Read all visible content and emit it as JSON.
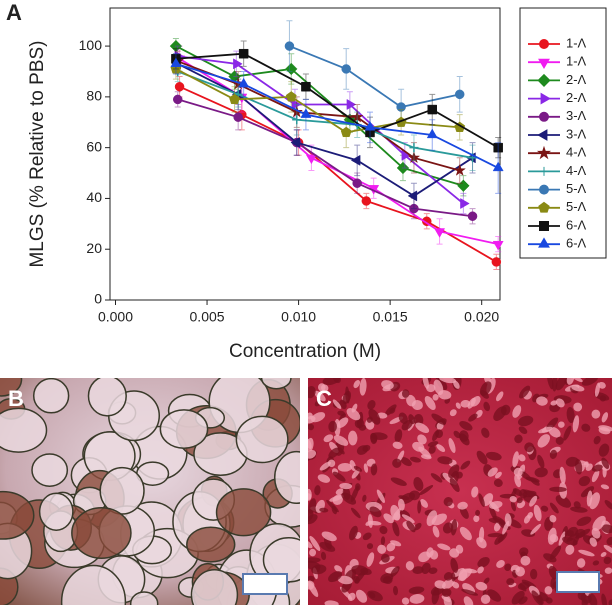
{
  "chart_data": {
    "type": "line",
    "panel_label": "A",
    "y_label": "MLGS (% Relative to PBS)",
    "x_label": "Concentration (M)",
    "xlim": [
      -0.0003,
      0.021
    ],
    "ylim": [
      0,
      115
    ],
    "xticks": [
      {
        "value": 0,
        "label": "0.000"
      },
      {
        "value": 0.005,
        "label": "0.005"
      },
      {
        "value": 0.01,
        "label": "0.010"
      },
      {
        "value": 0.015,
        "label": "0.015"
      },
      {
        "value": 0.02,
        "label": "0.020"
      }
    ],
    "yticks": [
      0,
      20,
      40,
      60,
      80,
      100
    ],
    "legend": "right",
    "series": [
      {
        "name": "1-Λ",
        "color": "#e8141e",
        "marker": "circle",
        "x": [
          0.0035,
          0.0069,
          0.01,
          0.0137,
          0.017,
          0.0208
        ],
        "values": [
          84,
          73,
          62,
          39,
          31,
          15
        ],
        "errors": [
          4,
          6,
          5,
          3,
          3,
          3
        ]
      },
      {
        "name": "1-Λ",
        "color": "#f01cf0",
        "marker": "triangle-down",
        "x": [
          0.0035,
          0.0069,
          0.0107,
          0.0141,
          0.0177,
          0.0209
        ],
        "values": [
          95,
          80,
          56,
          44,
          27,
          22
        ],
        "errors": [
          5,
          6,
          5,
          4,
          5,
          3
        ]
      },
      {
        "name": "2-Λ",
        "color": "#1e8a1e",
        "marker": "diamond",
        "x": [
          0.0033,
          0.0065,
          0.0096,
          0.0128,
          0.0157,
          0.019
        ],
        "values": [
          100,
          88,
          91,
          71,
          52,
          45
        ],
        "errors": [
          3,
          5,
          6,
          5,
          5,
          4
        ]
      },
      {
        "name": "2-Λ",
        "color": "#8a28e6",
        "marker": "triangle-right",
        "x": [
          0.0034,
          0.0066,
          0.0098,
          0.0128,
          0.0158,
          0.019
        ],
        "values": [
          96,
          93,
          77,
          77,
          57,
          38
        ],
        "errors": [
          4,
          5,
          6,
          5,
          5,
          4
        ]
      },
      {
        "name": "3-Λ",
        "color": "#7a1a86",
        "marker": "circle",
        "x": [
          0.0034,
          0.0067,
          0.0099,
          0.0132,
          0.0163,
          0.0195
        ],
        "values": [
          79,
          72,
          62,
          46,
          36,
          33
        ],
        "errors": [
          3,
          5,
          5,
          4,
          4,
          3
        ]
      },
      {
        "name": "3-Λ",
        "color": "#1c1c78",
        "marker": "triangle-left",
        "x": [
          0.0034,
          0.0067,
          0.0099,
          0.0132,
          0.0163,
          0.0195
        ],
        "values": [
          93,
          81,
          62,
          55,
          41,
          56
        ],
        "errors": [
          4,
          6,
          5,
          6,
          5,
          6
        ]
      },
      {
        "name": "4-Λ",
        "color": "#7a1414",
        "marker": "star",
        "x": [
          0.0034,
          0.0067,
          0.0099,
          0.0132,
          0.0163,
          0.0188
        ],
        "values": [
          94,
          85,
          74,
          72,
          56,
          51
        ],
        "errors": [
          4,
          5,
          6,
          5,
          6,
          5
        ]
      },
      {
        "name": "4-Λ",
        "color": "#2a9a9a",
        "marker": "plus",
        "x": [
          0.0034,
          0.0067,
          0.0099,
          0.0132,
          0.0163,
          0.0195
        ],
        "values": [
          90,
          81,
          71,
          69,
          60,
          56
        ],
        "errors": [
          4,
          5,
          6,
          5,
          5,
          5
        ]
      },
      {
        "name": "5-Λ",
        "color": "#3a78b4",
        "marker": "circle",
        "x": [
          0.0095,
          0.0126,
          0.0156,
          0.0188
        ],
        "values": [
          100,
          91,
          76,
          81
        ],
        "errors": [
          10,
          8,
          7,
          7
        ]
      },
      {
        "name": "5-Λ",
        "color": "#8a8a14",
        "marker": "pentagon",
        "x": [
          0.0033,
          0.0065,
          0.0096,
          0.0126,
          0.0156,
          0.0188
        ],
        "values": [
          91,
          79,
          80,
          66,
          70,
          68
        ],
        "errors": [
          4,
          5,
          6,
          6,
          5,
          5
        ]
      },
      {
        "name": "6-Λ",
        "color": "#111111",
        "marker": "square",
        "x": [
          0.0033,
          0.007,
          0.0104,
          0.0139,
          0.0173,
          0.0209
        ],
        "values": [
          95,
          97,
          84,
          66,
          75,
          60
        ],
        "errors": [
          4,
          5,
          5,
          6,
          6,
          4
        ]
      },
      {
        "name": "6-Λ",
        "color": "#1848e0",
        "marker": "triangle-up",
        "x": [
          0.0033,
          0.007,
          0.0104,
          0.0139,
          0.0173,
          0.0209
        ],
        "values": [
          93,
          85,
          73,
          68,
          65,
          52
        ],
        "errors": [
          4,
          5,
          6,
          6,
          6,
          10
        ]
      }
    ]
  },
  "images": [
    {
      "label": "B"
    },
    {
      "label": "C"
    }
  ]
}
